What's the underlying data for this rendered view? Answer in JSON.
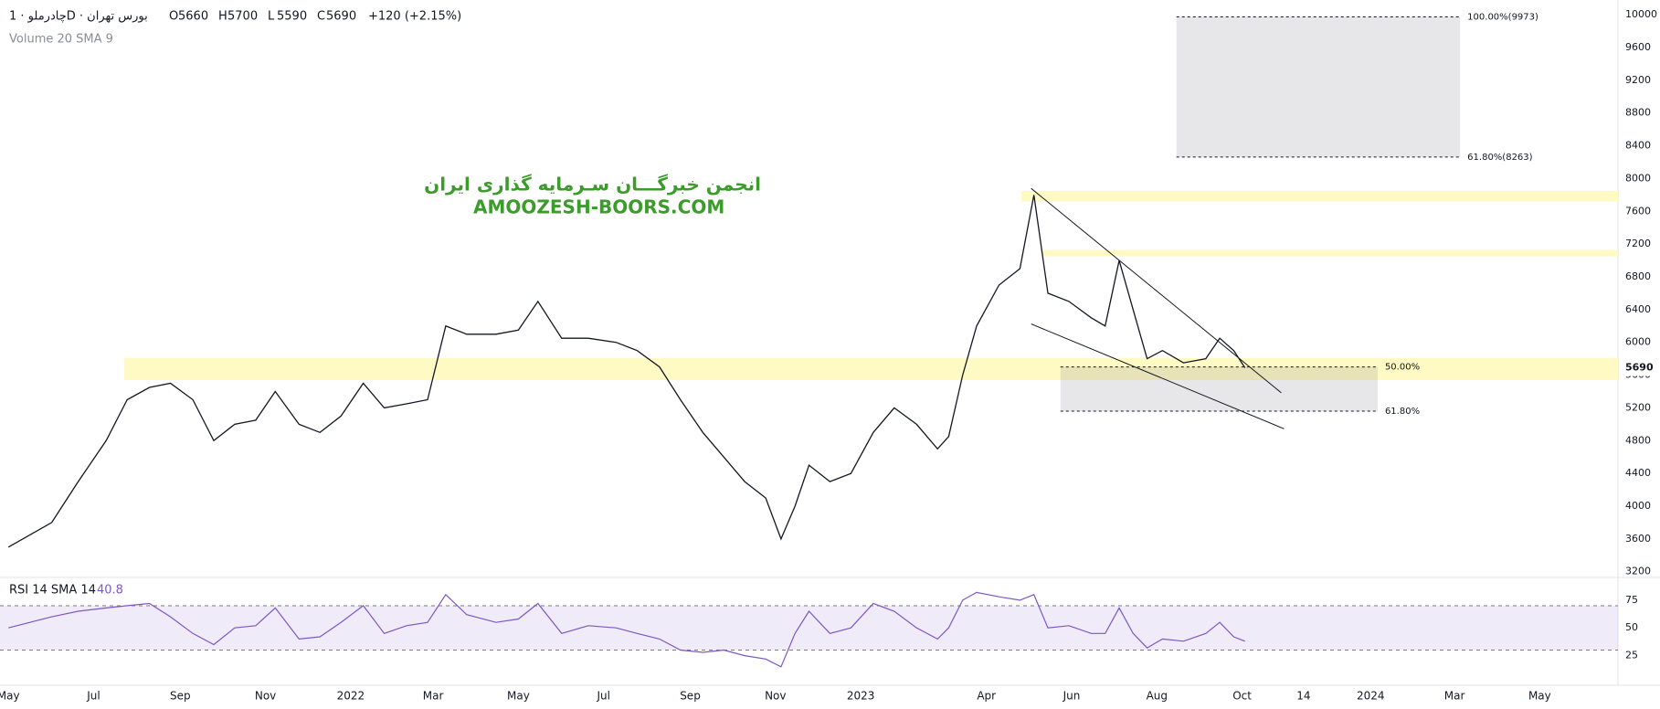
{
  "chart_data": {
    "type": "line",
    "title": "چادرملو · 1D · بورس تهران",
    "ohlc": [
      {
        "label": "O",
        "value": 5660
      },
      {
        "label": "H",
        "value": 5700
      },
      {
        "label": "L",
        "value": 5590
      },
      {
        "label": "C",
        "value": 5690
      }
    ],
    "change": "+120 (+2.15%)",
    "volume_label": "Volume 20 SMA 9",
    "watermark": [
      "انجمن خبرگـــان سـرمایه گذاری ایران",
      "AMOOZESH-BOORS.COM"
    ],
    "x": [
      "2021-05-01",
      "2021-06-01",
      "2021-06-20",
      "2021-07-10",
      "2021-07-25",
      "2021-08-10",
      "2021-08-25",
      "2021-09-10",
      "2021-09-25",
      "2021-10-10",
      "2021-10-25",
      "2021-11-08",
      "2021-11-25",
      "2021-12-10",
      "2021-12-25",
      "2022-01-10",
      "2022-01-25",
      "2022-02-10",
      "2022-02-25",
      "2022-03-10",
      "2022-03-25",
      "2022-04-15",
      "2022-05-01",
      "2022-05-15",
      "2022-06-01",
      "2022-06-20",
      "2022-07-10",
      "2022-07-25",
      "2022-08-10",
      "2022-08-25",
      "2022-09-10",
      "2022-09-25",
      "2022-10-10",
      "2022-10-25",
      "2022-11-05",
      "2022-11-15",
      "2022-11-25",
      "2022-12-10",
      "2022-12-25",
      "2023-01-10",
      "2023-01-25",
      "2023-02-10",
      "2023-02-25",
      "2023-03-05",
      "2023-03-15",
      "2023-03-25",
      "2023-04-10",
      "2023-04-25",
      "2023-05-05",
      "2023-05-15",
      "2023-05-30",
      "2023-06-15",
      "2023-06-25",
      "2023-07-05",
      "2023-07-15",
      "2023-07-25",
      "2023-08-05",
      "2023-08-20",
      "2023-09-05",
      "2023-09-15",
      "2023-09-25",
      "2023-10-03"
    ],
    "values": [
      3500,
      3800,
      4300,
      4800,
      5300,
      5450,
      5500,
      5300,
      4800,
      5000,
      5050,
      5400,
      5000,
      4900,
      5100,
      5500,
      5200,
      5250,
      5300,
      6200,
      6100,
      6100,
      6150,
      6500,
      6050,
      6050,
      6000,
      5900,
      5700,
      5300,
      4900,
      4600,
      4300,
      4100,
      3600,
      4000,
      4500,
      4300,
      4400,
      4900,
      5200,
      5000,
      4700,
      4850,
      5600,
      6200,
      6700,
      6900,
      7800,
      6600,
      6500,
      6300,
      6200,
      7000,
      6400,
      5800,
      5900,
      5750,
      5800,
      6050,
      5900,
      5690
    ],
    "color": "#131722",
    "xlim": [
      "2021-04-25",
      "2024-06-26"
    ],
    "xticks": [
      {
        "value": "2021-05-01",
        "label": "May"
      },
      {
        "value": "2021-07-01",
        "label": "Jul"
      },
      {
        "value": "2021-09-01",
        "label": "Sep"
      },
      {
        "value": "2021-11-01",
        "label": "Nov"
      },
      {
        "value": "2022-01-01",
        "label": "2022"
      },
      {
        "value": "2022-03-01",
        "label": "Mar"
      },
      {
        "value": "2022-05-01",
        "label": "May"
      },
      {
        "value": "2022-07-01",
        "label": "Jul"
      },
      {
        "value": "2022-09-01",
        "label": "Sep"
      },
      {
        "value": "2022-11-01",
        "label": "Nov"
      },
      {
        "value": "2023-01-01",
        "label": "2023"
      },
      {
        "value": "2023-04-01",
        "label": "Apr"
      },
      {
        "value": "2023-06-01",
        "label": "Jun"
      },
      {
        "value": "2023-08-01",
        "label": "Aug"
      },
      {
        "value": "2023-10-01",
        "label": "Oct"
      },
      {
        "value": "2023-11-14",
        "label": "14"
      },
      {
        "value": "2024-01-01",
        "label": "2024"
      },
      {
        "value": "2024-03-01",
        "label": "Mar"
      },
      {
        "value": "2024-05-01",
        "label": "May"
      }
    ],
    "ylim": [
      3130,
      10180
    ],
    "yticks": [
      3200,
      3600,
      4000,
      4400,
      4800,
      5200,
      5600,
      6000,
      6400,
      6800,
      7200,
      7600,
      8000,
      8400,
      8800,
      9200,
      9600,
      10000
    ],
    "last_price": 5690,
    "zone_color": "#fff9c4",
    "zones": [
      {
        "start": "2023-04-26",
        "range": [
          7720,
          7850
        ]
      },
      {
        "start": "2023-05-11",
        "range": [
          7050,
          7130
        ]
      },
      {
        "start": "2021-07-23",
        "range": [
          5540,
          5810
        ]
      }
    ],
    "trendlines": [
      {
        "x": [
          "2023-05-03",
          "2023-10-29"
        ],
        "y": [
          7880,
          5385
        ]
      },
      {
        "x": [
          "2023-05-03",
          "2023-10-31"
        ],
        "y": [
          6225,
          4945
        ]
      }
    ],
    "fib": [
      {
        "x": [
          "2023-08-15",
          "2024-03-05"
        ],
        "levels": [
          {
            "value": 9973,
            "label": "100.00%(9973)"
          },
          {
            "value": 8263,
            "label": "61.80%(8263)"
          }
        ]
      },
      {
        "x": [
          "2023-05-24",
          "2024-01-06"
        ],
        "levels": [
          {
            "value": 5700,
            "label": "50.00%"
          },
          {
            "value": 5160,
            "label": "61.80%"
          }
        ]
      }
    ],
    "rsi": {
      "title": "RSI 14 SMA 14",
      "sma_value": 40.8,
      "color": "#7e57c2",
      "values": [
        50,
        60,
        65,
        68,
        70,
        72,
        60,
        45,
        35,
        50,
        52,
        68,
        40,
        42,
        55,
        70,
        45,
        52,
        55,
        80,
        62,
        55,
        58,
        72,
        45,
        52,
        50,
        45,
        40,
        30,
        28,
        30,
        25,
        22,
        15,
        45,
        65,
        45,
        50,
        72,
        65,
        50,
        40,
        50,
        75,
        82,
        78,
        75,
        80,
        50,
        52,
        45,
        45,
        68,
        45,
        32,
        40,
        38,
        45,
        55,
        42,
        38
      ],
      "ylim": [
        0,
        93
      ],
      "yticks": [
        25,
        50,
        75
      ],
      "band": [
        30,
        70
      ]
    }
  }
}
